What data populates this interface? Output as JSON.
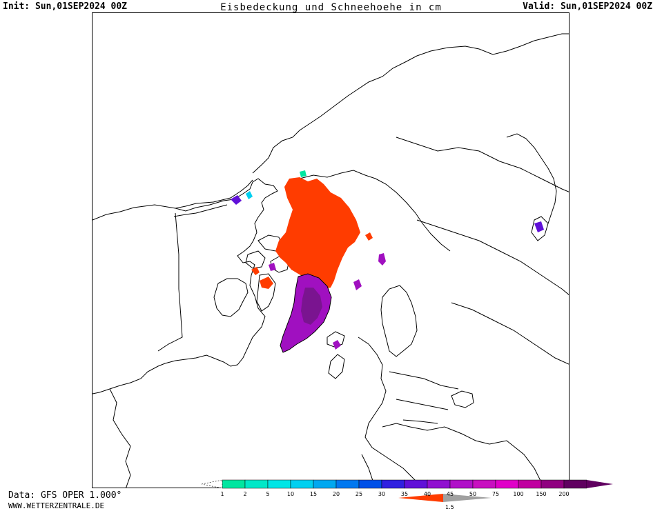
{
  "header": {
    "init": "Init: Sun,01SEP2024 00Z",
    "title": "Eisbedeckung und Schneehoehe in cm",
    "valid": "Valid: Sun,01SEP2024 00Z"
  },
  "footer": {
    "data_source": "Data: GFS OPER 1.000°",
    "website": "WWW.WETTERZENTRALE.DE"
  },
  "legend": {
    "snow_ticks": [
      "1",
      "2",
      "5",
      "10",
      "15",
      "20",
      "25",
      "30",
      "35",
      "40",
      "45",
      "50",
      "75",
      "100",
      "150",
      "200"
    ],
    "snow_colors": [
      "#00e6a0",
      "#00e8c8",
      "#00e6e6",
      "#00d0f0",
      "#00a8f0",
      "#0078f0",
      "#0050e8",
      "#3020e0",
      "#6010d8",
      "#9010d0",
      "#b010c8",
      "#c810c0",
      "#e000c8",
      "#c000a0",
      "#900080",
      "#600060"
    ],
    "ice_tick": "1.5",
    "ice_color": "#ff3c00",
    "ice_gray": "#a0a0a0"
  },
  "colors": {
    "sea_ice": "#ff3c00",
    "greenland_snow": "#a010c0",
    "greenland_snow_deep": "#7a1490",
    "coastline": "#000000"
  }
}
